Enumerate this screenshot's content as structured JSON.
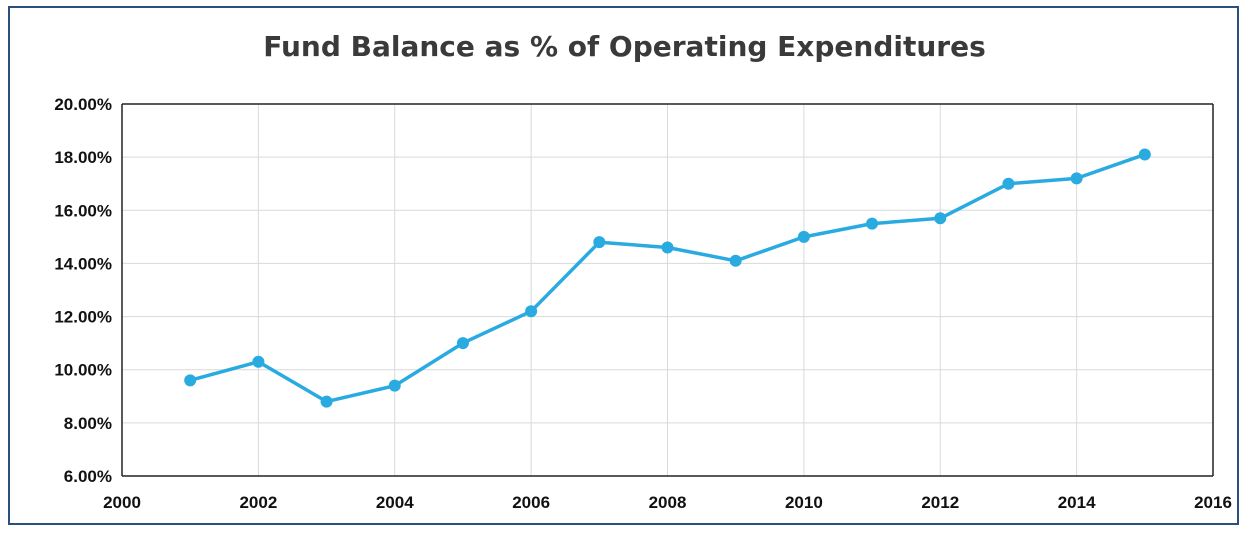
{
  "chart_data": {
    "type": "scatter",
    "title": "Fund Balance as % of Operating Expenditures",
    "xlabel": "",
    "ylabel": "",
    "xlim": [
      2000,
      2016
    ],
    "ylim": [
      6,
      20
    ],
    "x_ticks": [
      2000,
      2002,
      2004,
      2006,
      2008,
      2010,
      2012,
      2014,
      2016
    ],
    "x_tick_labels": [
      "2000",
      "2002",
      "2004",
      "2006",
      "2008",
      "2010",
      "2012",
      "2014",
      "2016"
    ],
    "y_ticks": [
      6,
      8,
      10,
      12,
      14,
      16,
      18,
      20
    ],
    "y_tick_labels": [
      "6.00%",
      "8.00%",
      "10.00%",
      "12.00%",
      "14.00%",
      "16.00%",
      "18.00%",
      "20.00%"
    ],
    "grid": true,
    "legend": "none",
    "series": [
      {
        "color": "#29abe2",
        "x": [
          2001,
          2002,
          2003,
          2004,
          2005,
          2006,
          2007,
          2008,
          2009,
          2010,
          2011,
          2012,
          2013,
          2014,
          2015
        ],
        "values": [
          9.6,
          10.3,
          8.8,
          9.4,
          11.0,
          12.2,
          14.8,
          14.6,
          14.1,
          15.0,
          15.5,
          15.7,
          17.0,
          17.2,
          18.1
        ]
      }
    ]
  }
}
